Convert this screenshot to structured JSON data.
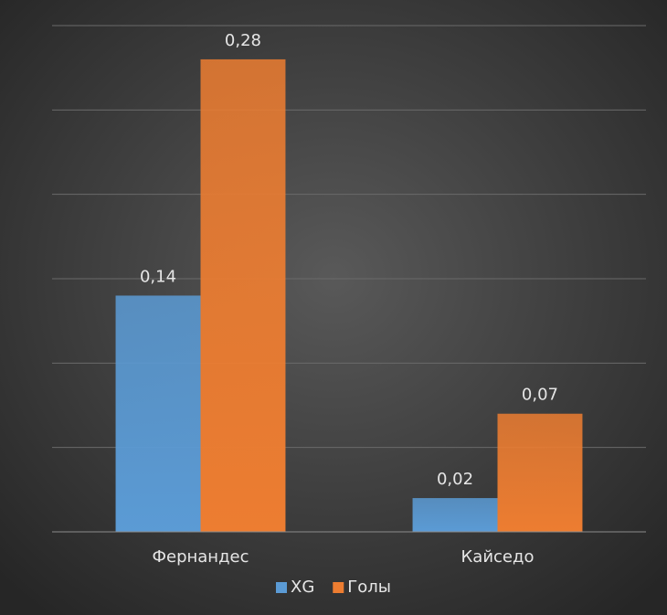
{
  "chart_data": {
    "type": "bar",
    "categories": [
      "Фернандес",
      "Кайседо"
    ],
    "series": [
      {
        "name": "XG",
        "color": "#5b9bd5",
        "values": [
          0.14,
          0.02
        ],
        "value_labels": [
          "0,14",
          "0,02"
        ]
      },
      {
        "name": "Голы",
        "color": "#ed7d31",
        "values": [
          0.28,
          0.07
        ],
        "value_labels": [
          "0,28",
          "0,07"
        ]
      }
    ],
    "ylim": [
      0,
      0.3
    ],
    "yticks": [
      0,
      0.05,
      0.1,
      0.15,
      0.2,
      0.25,
      0.3
    ],
    "grid": true,
    "legend": "bottom"
  }
}
